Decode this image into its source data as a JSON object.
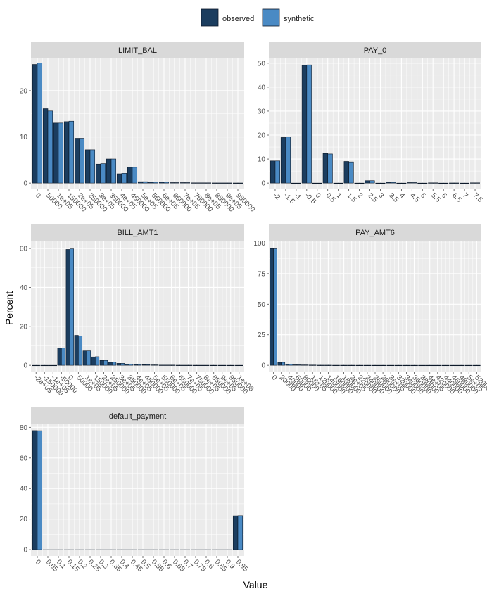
{
  "colors": {
    "observed": "#1b3d5f",
    "synthetic": "#4a8ac4",
    "panel_bg": "#ebebeb",
    "strip_bg": "#d9d9d9",
    "grid": "#ffffff",
    "bar_border": "#0d1a2a"
  },
  "chart_data": {
    "type": "bar",
    "layout": "faceted",
    "xlabel": "Value",
    "ylabel": "Percent",
    "legend": {
      "position": "top",
      "entries": [
        "observed",
        "synthetic"
      ]
    },
    "grid": true,
    "panels": [
      {
        "name": "LIMIT_BAL",
        "ylim": [
          0,
          27
        ],
        "yticks": [
          "0",
          "10",
          "20"
        ],
        "categories": [
          "0",
          "50000",
          "1e+05",
          "150000",
          "2e+05",
          "250000",
          "3e+05",
          "350000",
          "4e+05",
          "450000",
          "5e+05",
          "550000",
          "6e+05",
          "650000",
          "7e+05",
          "750000",
          "8e+05",
          "850000",
          "9e+05",
          "950000"
        ],
        "series": [
          {
            "name": "observed",
            "values": [
              25.7,
              16.1,
              13.0,
              13.3,
              9.7,
              7.2,
              4.1,
              5.2,
              2.0,
              3.4,
              0.3,
              0.2,
              0.2,
              0.1,
              0.1,
              0.05,
              0.05,
              0.03,
              0.03,
              0.02
            ]
          },
          {
            "name": "synthetic",
            "values": [
              26.0,
              15.6,
              13.0,
              13.4,
              9.7,
              7.2,
              4.2,
              5.2,
              2.1,
              3.4,
              0.3,
              0.2,
              0.2,
              0.1,
              0.1,
              0.05,
              0.05,
              0.03,
              0.03,
              0.02
            ]
          }
        ]
      },
      {
        "name": "PAY_0",
        "ylim": [
          0,
          52
        ],
        "yticks": [
          "0",
          "10",
          "20",
          "30",
          "40",
          "50"
        ],
        "categories": [
          "-2",
          "-1.5",
          "-1",
          "-0.5",
          "0",
          "0.5",
          "1",
          "1.5",
          "2",
          "2.5",
          "3",
          "3.5",
          "4",
          "4.5",
          "5",
          "5.5",
          "6",
          "6.5",
          "7",
          "7.5"
        ],
        "series": [
          {
            "name": "observed",
            "values": [
              9.2,
              19.0,
              0,
              49.1,
              0,
              12.3,
              0,
              9.0,
              0,
              1.0,
              0,
              0.3,
              0,
              0.2,
              0,
              0.1,
              0,
              0.05,
              0,
              0.1
            ]
          },
          {
            "name": "synthetic",
            "values": [
              9.2,
              19.2,
              0,
              49.3,
              0,
              12.1,
              0,
              8.8,
              0,
              1.0,
              0,
              0.3,
              0,
              0.2,
              0,
              0.1,
              0,
              0.05,
              0,
              0.1
            ]
          }
        ]
      },
      {
        "name": "BILL_AMT1",
        "ylim": [
          0,
          64
        ],
        "yticks": [
          "0",
          "20",
          "40",
          "60"
        ],
        "categories": [
          "-2e+05",
          "-150000",
          "-1e+05",
          "-50000",
          "0",
          "50000",
          "1e+05",
          "150000",
          "2e+05",
          "250000",
          "3e+05",
          "350000",
          "4e+05",
          "450000",
          "5e+05",
          "550000",
          "6e+05",
          "650000",
          "7e+05",
          "750000",
          "8e+05",
          "850000",
          "9e+05",
          "950000",
          "1e+06"
        ],
        "series": [
          {
            "name": "observed",
            "values": [
              0,
              0,
              0,
              8.8,
              59.5,
              15.4,
              7.4,
              4.3,
              2.5,
              1.5,
              1.0,
              0.6,
              0.4,
              0.3,
              0.2,
              0.1,
              0.1,
              0.05,
              0.05,
              0.03,
              0.03,
              0.02,
              0.02,
              0.01,
              0.01
            ]
          },
          {
            "name": "synthetic",
            "values": [
              0,
              0,
              0,
              8.9,
              59.8,
              15.1,
              7.4,
              4.4,
              2.5,
              1.6,
              1.0,
              0.6,
              0.4,
              0.3,
              0.2,
              0.1,
              0.1,
              0.05,
              0.05,
              0.03,
              0.03,
              0.02,
              0.02,
              0.01,
              0.01
            ]
          }
        ]
      },
      {
        "name": "PAY_AMT6",
        "ylim": [
          0,
          102
        ],
        "yticks": [
          "0",
          "25",
          "50",
          "75",
          "100"
        ],
        "categories": [
          "0",
          "20000",
          "40000",
          "60000",
          "80000",
          "1e+05",
          "120000",
          "140000",
          "160000",
          "180000",
          "2e+05",
          "220000",
          "240000",
          "260000",
          "280000",
          "3e+05",
          "320000",
          "340000",
          "360000",
          "380000",
          "4e+05",
          "420000",
          "440000",
          "460000",
          "480000",
          "5e+05",
          "520000"
        ],
        "series": [
          {
            "name": "observed",
            "values": [
              95.5,
              2.3,
              0.9,
              0.4,
              0.3,
              0.2,
              0.1,
              0.1,
              0.05,
              0.05,
              0.05,
              0.03,
              0.03,
              0.02,
              0.02,
              0.02,
              0.01,
              0.01,
              0.01,
              0.01,
              0.01,
              0.01,
              0.01,
              0.01,
              0.01,
              0.01,
              0.01
            ]
          },
          {
            "name": "synthetic",
            "values": [
              95.4,
              2.4,
              0.9,
              0.4,
              0.3,
              0.2,
              0.1,
              0.1,
              0.05,
              0.05,
              0.05,
              0.03,
              0.03,
              0.02,
              0.02,
              0.02,
              0.01,
              0.01,
              0.01,
              0.01,
              0.01,
              0.01,
              0.01,
              0.01,
              0.01,
              0.01,
              0.01
            ]
          }
        ]
      },
      {
        "name": "default_payment",
        "ylim": [
          0,
          82
        ],
        "yticks": [
          "0",
          "20",
          "40",
          "60",
          "80"
        ],
        "categories": [
          "0",
          "0.05",
          "0.1",
          "0.15",
          "0.2",
          "0.25",
          "0.3",
          "0.35",
          "0.4",
          "0.45",
          "0.5",
          "0.55",
          "0.6",
          "0.65",
          "0.7",
          "0.75",
          "0.8",
          "0.85",
          "0.9",
          "0.95"
        ],
        "series": [
          {
            "name": "observed",
            "values": [
              77.9,
              0,
              0,
              0,
              0,
              0,
              0,
              0,
              0,
              0,
              0,
              0,
              0,
              0,
              0,
              0,
              0,
              0,
              0,
              22.1
            ]
          },
          {
            "name": "synthetic",
            "values": [
              77.8,
              0,
              0,
              0,
              0,
              0,
              0,
              0,
              0,
              0,
              0,
              0,
              0,
              0,
              0,
              0,
              0,
              0,
              0,
              22.2
            ]
          }
        ]
      }
    ]
  }
}
